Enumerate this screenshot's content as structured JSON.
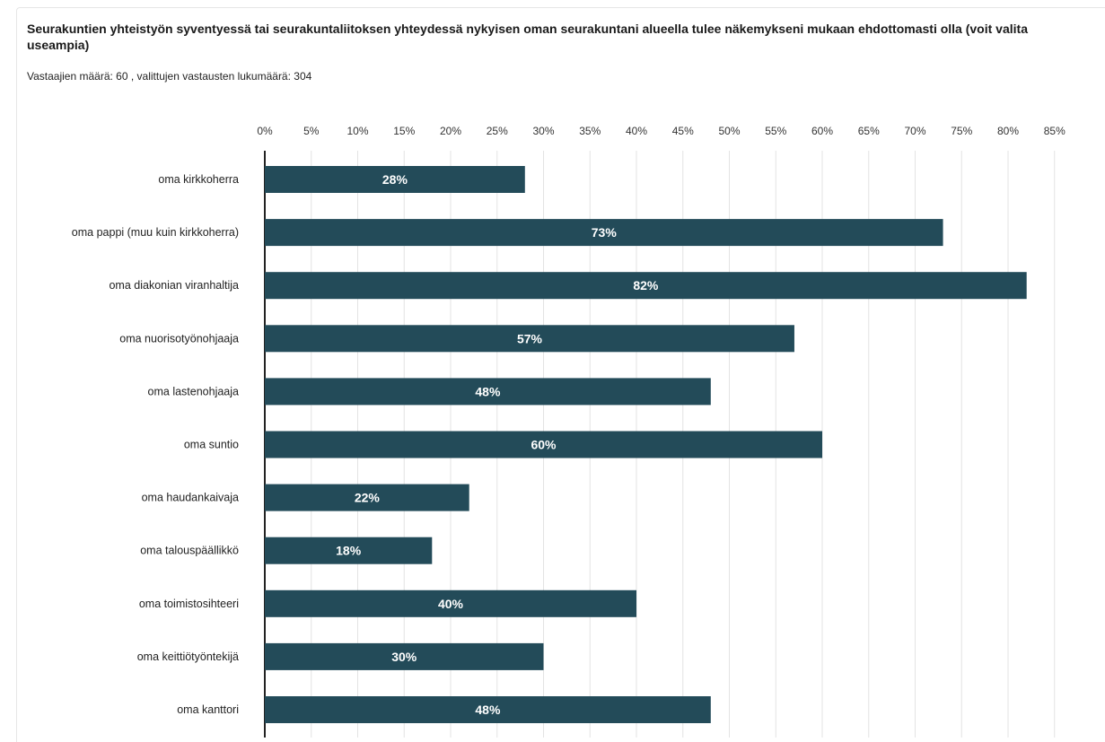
{
  "header": {
    "title": "Seurakuntien yhteistyön syventyessä tai seurakuntaliitoksen yhteydessä nykyisen oman seurakuntani alueella tulee näkemykseni mukaan ehdottomasti olla (voit valita useampia)",
    "subtitle": "Vastaajien määrä: 60 , valittujen vastausten lukumäärä: 304"
  },
  "chart_data": {
    "type": "bar",
    "orientation": "horizontal",
    "categories": [
      "oma kirkkoherra",
      "oma pappi (muu kuin kirkkoherra)",
      "oma diakonian viranhaltija",
      "oma nuorisotyönohjaaja",
      "oma lastenohjaaja",
      "oma suntio",
      "oma haudankaivaja",
      "oma talouspäällikkö",
      "oma toimistosihteeri",
      "oma keittiötyöntekijä",
      "oma kanttori"
    ],
    "values": [
      28,
      73,
      82,
      57,
      48,
      60,
      22,
      18,
      40,
      30,
      48
    ],
    "value_labels": [
      "28%",
      "73%",
      "82%",
      "57%",
      "48%",
      "60%",
      "22%",
      "18%",
      "40%",
      "30%",
      "48%"
    ],
    "x_ticks": [
      "0%",
      "5%",
      "10%",
      "15%",
      "20%",
      "25%",
      "30%",
      "35%",
      "40%",
      "45%",
      "50%",
      "55%",
      "60%",
      "65%",
      "70%",
      "75%",
      "80%",
      "85%"
    ],
    "xlim": [
      0,
      85
    ],
    "unit": "%",
    "grid": true,
    "bar_color": "#234b59"
  }
}
